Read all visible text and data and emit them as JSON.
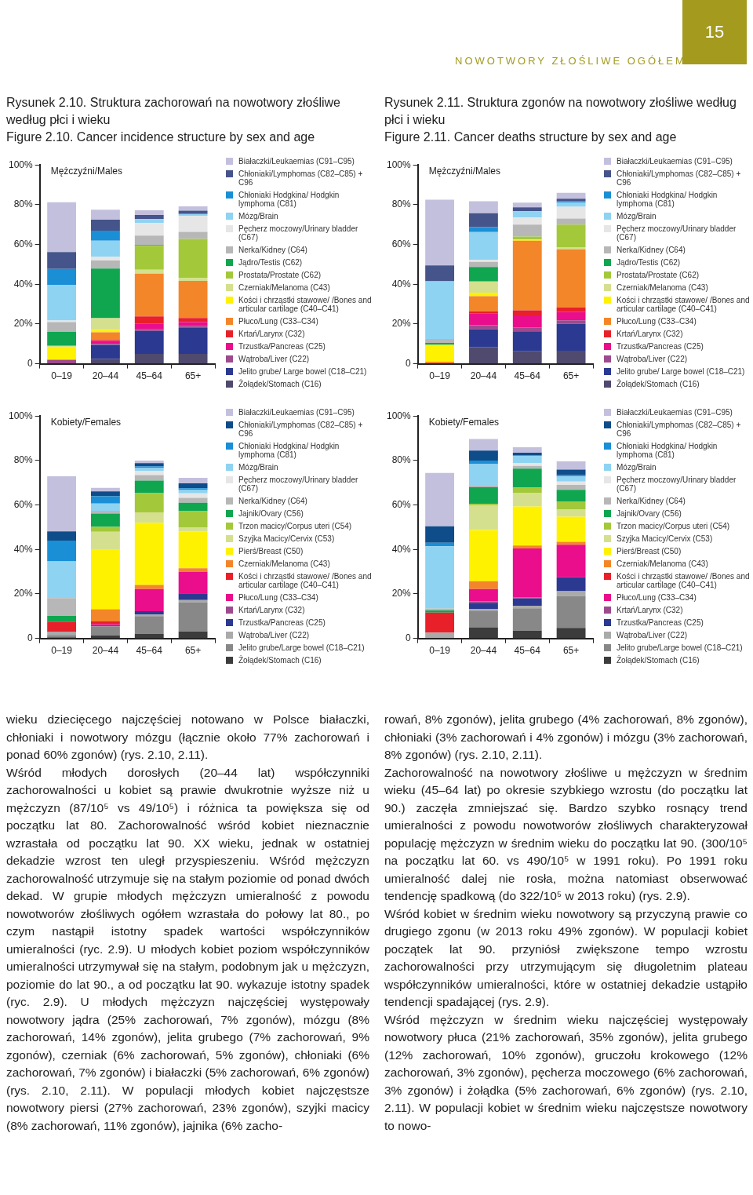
{
  "chart_data": [
    {
      "type": "bar",
      "title": "Rysunek 2.10. Struktura zachorowań na nowotwory złośliwe według płci i wieku\nFigure 2.10. Cancer incidence structure by sex and age",
      "subtitle": "Mężczyźni/Males",
      "stacked": true,
      "legend": "right",
      "categories": [
        "0–19",
        "20–44",
        "45–64",
        "65+"
      ],
      "ylim": [
        0,
        100
      ],
      "yticks": [
        {
          "value": 0,
          "label": "0"
        },
        {
          "value": 20,
          "label": "20%"
        },
        {
          "value": 40,
          "label": "40%"
        },
        {
          "value": 60,
          "label": "60%"
        },
        {
          "value": 80,
          "label": "80%"
        },
        {
          "value": 100,
          "label": "100%"
        }
      ],
      "annotations": [
        "15",
        "NOWOTWORY ZŁOŚLIWE OGÓŁEM",
        "wieku dziecięcego najczęściej notowano w Polsce białaczki, chłoniaki i nowotwory mózgu (łącznie około 77% zachorowań i ponad 60% zgonów) (rys. 2.10, 2.11).\nWśród młodych dorosłych (20–44 lat) współczynniki zachorowalności u kobiet są prawie dwukrotnie wyższe niż u mężczyzn (87/10⁵ vs 49/10⁵) i różnica ta powiększa się od początku lat 80. Zachorowalność wśród kobiet nieznacznie wzrastała od początku lat 90. XX wieku, jednak w ostatniej dekadzie wzrost ten uległ przyspieszeniu. Wśród mężczyzn zachorowalność utrzymuje się na stałym poziomie od ponad dwóch dekad. W grupie młodych mężczyzn umieralność z powodu nowotworów złośliwych ogółem wzrastała do połowy lat 80., po czym nastąpił istotny spadek wartości współczynników umieralności (ryc. 2.9). U młodych kobiet poziom współczynników umieralności utrzymywał się na stałym, podobnym jak u mężczyzn, poziomie do lat 90., a od początku lat 90. wykazuje istotny spadek (ryc. 2.9). U młodych mężczyzn najczęściej występowały nowotwory jądra (25% zachorowań, 7% zgonów), mózgu (8% zachorowań, 14% zgonów), jelita grubego (7% zachorowań, 9% zgonów), czerniak (6% zachorowań, 5% zgonów), chłoniaki (6% zachorowań, 7% zgonów) i białaczki (5% zachorowań, 6% zgonów) (rys. 2.10, 2.11). W populacji młodych kobiet najczęstsze nowotwory piersi (27% zachorowań, 23% zgonów), szyjki macicy (8% zachorowań, 11% zgonów), jajnika (6% zacho-"
      ],
      "series": [
        {
          "name": "Żołądek/Stomach (C16)",
          "color": "#4f4a6e",
          "values": [
            0,
            2.5,
            5,
            5
          ]
        },
        {
          "name": "Jelito grube/ Large bowel (C18–C21)",
          "color": "#2b3990",
          "values": [
            0,
            7,
            11.5,
            13
          ]
        },
        {
          "name": "Wątroba/Liver (C22)",
          "color": "#9e4a8e",
          "values": [
            2,
            0.5,
            0.8,
            1
          ]
        },
        {
          "name": "Trzustka/Pancreas (C25)",
          "color": "#ea0d8c",
          "values": [
            0,
            1.5,
            3,
            2
          ]
        },
        {
          "name": "Krtań/Larynx (C32)",
          "color": "#e8202a",
          "values": [
            0,
            0.5,
            3.5,
            2
          ]
        },
        {
          "name": "Płuco/Lung (C33–C34)",
          "color": "#f4862a",
          "values": [
            0,
            3.8,
            21.5,
            18.7
          ]
        },
        {
          "name": "Kości i chrząstki stawowe/ /Bones and articular cartilage (C40–C41)",
          "color": "#fff200",
          "values": [
            6.5,
            1.2,
            0,
            0
          ]
        },
        {
          "name": "Czerniak/Melanoma (C43)",
          "color": "#d5e08e",
          "values": [
            0.5,
            5.9,
            2,
            1.4
          ]
        },
        {
          "name": "Prostata/Prostate (C62)",
          "color": "#a3c93a",
          "values": [
            0,
            0,
            12,
            19.7
          ]
        },
        {
          "name": "Jądro/Testis (C62)",
          "color": "#10a650",
          "values": [
            7,
            25,
            0.4,
            0
          ]
        },
        {
          "name": "Nerka/Kidney (C64)",
          "color": "#b7b7b7",
          "values": [
            5,
            4,
            4.8,
            3.5
          ]
        },
        {
          "name": "Pęcherz moczowy/Urinary bladder (C67)",
          "color": "#e6e6e6",
          "values": [
            0.7,
            2,
            6.3,
            8
          ]
        },
        {
          "name": "Mózg/Brain",
          "color": "#8fd3f2",
          "values": [
            18,
            8,
            2,
            1
          ]
        },
        {
          "name": "Chłoniaki Hodgkina/ Hodgkin lymphoma (C81)",
          "color": "#1a8fd6",
          "values": [
            8,
            5,
            0,
            0
          ]
        },
        {
          "name": "Chłoniaki/Lymphomas (C82–C85) + C96",
          "color": "#45548a",
          "values": [
            8.5,
            5.6,
            2,
            1.7
          ]
        },
        {
          "name": "Białaczki/Leukaemias (C91–C95)",
          "color": "#c3c0de",
          "values": [
            25,
            5,
            2.4,
            2.2
          ]
        }
      ]
    },
    {
      "type": "bar",
      "title": "Rysunek 2.11. Struktura zgonów na nowotwory złośliwe według płci i wieku\nFigure 2.11. Cancer deaths structure by sex and age",
      "subtitle": "Mężczyźni/Males",
      "stacked": true,
      "legend": "right",
      "categories": [
        "0–19",
        "20–44",
        "45–64",
        "65+"
      ],
      "ylim": [
        0,
        100
      ],
      "yticks": [
        {
          "value": 0,
          "label": "0"
        },
        {
          "value": 20,
          "label": "20%"
        },
        {
          "value": 40,
          "label": "40%"
        },
        {
          "value": 60,
          "label": "60%"
        },
        {
          "value": 80,
          "label": "80%"
        },
        {
          "value": 100,
          "label": "100%"
        }
      ],
      "annotations": [
        "rowań, 8% zgonów), jelita grubego (4% zachorowań, 8% zgonów), chłoniaki (3% zachorowań i 4% zgonów) i mózgu (3% zachorowań, 8% zgonów) (rys. 2.10, 2.11).\nZachorowalność na nowotwory złośliwe u mężczyzn w średnim wieku (45–64 lat) po okresie szybkiego wzrostu (do początku lat 90.) zaczęła zmniejszać się. Bardzo szybko rosnący trend umieralności z powodu nowotworów złośliwych charakteryzował populację mężczyzn w średnim wieku do początku lat 90. (300/10⁵ na początku lat 60. vs 490/10⁵ w 1991 roku). Po 1991 roku umieralność dalej nie rosła, można natomiast obserwować tendencję spadkową (do 322/10⁵ w 2013 roku) (rys. 2.9).\nWśród kobiet w średnim wieku nowotwory są przyczyną prawie co drugiego zgonu (w 2013 roku 49% zgonów). W populacji kobiet początek lat 90. przyniósł zwiększone tempo wzrostu zachorowalności przy utrzymującym się długoletnim plateau współczynników umieralności, które w ostatniej dekadzie ustąpiło tendencji spadającej (rys. 2.9).\nWśród mężczyzn w średnim wieku najczęściej występowały nowotwory płuca (21% zachorowań, 35% zgonów), jelita grubego (12% zachorowań, 10% zgonów), gruczołu krokowego (12% zachorowań, 3% zgonów), pęcherza moczowego (6% zachorowań, 3% zgonów) i żołądka (5% zachorowań, 6% zgonów) (rys. 2.10, 2.11). W populacji kobiet w średnim wieku najczęstsze nowotwory to nowo-"
      ],
      "series": [
        {
          "name": "Żołądek/Stomach (C16)",
          "color": "#4f4a6e",
          "values": [
            0,
            8.4,
            6.3,
            6.6
          ]
        },
        {
          "name": "Jelito grube/ Large bowel (C18–C21)",
          "color": "#2b3990",
          "values": [
            0,
            9,
            10,
            13.5
          ]
        },
        {
          "name": "Wątroba/Liver (C22)",
          "color": "#9e4a8e",
          "values": [
            0,
            2,
            2,
            1.7
          ]
        },
        {
          "name": "Trzustka/Pancreas (C25)",
          "color": "#ea0d8c",
          "values": [
            0,
            6,
            5.6,
            4.2
          ]
        },
        {
          "name": "Krtań/Larynx (C32)",
          "color": "#e8202a",
          "values": [
            0,
            1,
            3,
            2.4
          ]
        },
        {
          "name": "Płuco/Lung (C33–C34)",
          "color": "#f4862a",
          "values": [
            1,
            7.6,
            35,
            29.2
          ]
        },
        {
          "name": "Kości i chrząstki stawowe/ /Bones and articular cartilage (C40–C41)",
          "color": "#fff200",
          "values": [
            8.5,
            1.8,
            0.6,
            0
          ]
        },
        {
          "name": "Czerniak/Melanoma (C43)",
          "color": "#d5e08e",
          "values": [
            0,
            5.6,
            0,
            1
          ]
        },
        {
          "name": "Prostata/Prostate (C62)",
          "color": "#a3c93a",
          "values": [
            0,
            0,
            1.5,
            11.4
          ]
        },
        {
          "name": "Jądro/Testis (C62)",
          "color": "#10a650",
          "values": [
            1,
            7.3,
            0,
            0
          ]
        },
        {
          "name": "Nerka/Kidney (C64)",
          "color": "#b7b7b7",
          "values": [
            2,
            2.5,
            6,
            3
          ]
        },
        {
          "name": "Pęcherz moczowy/Urinary bladder (C67)",
          "color": "#e6e6e6",
          "values": [
            0,
            1,
            3.5,
            6
          ]
        },
        {
          "name": "Mózg/Brain",
          "color": "#8fd3f2",
          "values": [
            29,
            14,
            3.2,
            2
          ]
        },
        {
          "name": "Chłoniaki Hodgkina/ Hodgkin lymphoma (C81)",
          "color": "#1a8fd6",
          "values": [
            0,
            2.5,
            0,
            0.8
          ]
        },
        {
          "name": "Chłoniaki/Lymphomas (C82–C85) + C96",
          "color": "#45548a",
          "values": [
            8,
            7,
            2,
            1.2
          ]
        },
        {
          "name": "Białaczki/Leukaemias (C91–C95)",
          "color": "#c3c0de",
          "values": [
            33,
            6,
            2.3,
            3
          ]
        }
      ]
    },
    {
      "type": "bar",
      "subtitle": "Kobiety/Females",
      "stacked": true,
      "legend": "right",
      "categories": [
        "0–19",
        "20–44",
        "45–64",
        "65+"
      ],
      "ylim": [
        0,
        100
      ],
      "yticks": [
        {
          "value": 0,
          "label": "0"
        },
        {
          "value": 20,
          "label": "20%"
        },
        {
          "value": 40,
          "label": "40%"
        },
        {
          "value": 60,
          "label": "60%"
        },
        {
          "value": 80,
          "label": "80%"
        },
        {
          "value": 100,
          "label": "100%"
        }
      ],
      "series": [
        {
          "name": "Żołądek/Stomach (C16)",
          "color": "#3c3c3c",
          "values": [
            0.5,
            1.4,
            2,
            3.1
          ]
        },
        {
          "name": "Jelito grube/Large bowel (C18–C21)",
          "color": "#888888",
          "values": [
            1,
            4,
            8,
            13.2
          ]
        },
        {
          "name": "Wątroba/Liver (C22)",
          "color": "#aaaaaa",
          "values": [
            1.5,
            null,
            0.7,
            0.9
          ]
        },
        {
          "name": "Trzustka/Pancreas (C25)",
          "color": "#2b3990",
          "values": [
            0,
            0,
            1.5,
            3
          ]
        },
        {
          "name": "Krtań/Larynx (C32)",
          "color": "#9e4a8e",
          "values": [
            0,
            0,
            0,
            0
          ]
        },
        {
          "name": "Płuco/Lung (C33–C34)",
          "color": "#ea0d8c",
          "values": [
            0,
            1,
            10,
            9.7
          ]
        },
        {
          "name": "Kości i chrząstki stawowe/ /Bones and articular cartilage (C40–C41)",
          "color": "#e8202a",
          "values": [
            4.5,
            1.2,
            0,
            0
          ]
        },
        {
          "name": "Czerniak/Melanoma (C43)",
          "color": "#f4862a",
          "values": [
            0,
            5.5,
            1.8,
            1.6
          ]
        },
        {
          "name": "Pierś/Breast (C50)",
          "color": "#fff200",
          "values": [
            0,
            27,
            28,
            16.5
          ]
        },
        {
          "name": "Szyjka Macicy/Cervix (C53)",
          "color": "#d5e08e",
          "values": [
            0,
            7.8,
            4.7,
            2
          ]
        },
        {
          "name": "Trzon macicy/Corpus uteri (C54)",
          "color": "#a3c93a",
          "values": [
            0,
            2.2,
            8.6,
            7.2
          ]
        },
        {
          "name": "Jajnik/Ovary (C56)",
          "color": "#10a650",
          "values": [
            2.6,
            6,
            5.7,
            3.8
          ]
        },
        {
          "name": "Nerka/Kidney (C64)",
          "color": "#b7b7b7",
          "values": [
            8,
            1.3,
            2.4,
            2.2
          ]
        },
        {
          "name": "Pęcherz moczowy/Urinary bladder (C67)",
          "color": "#e6e6e6",
          "values": [
            0,
            0,
            2,
            2
          ]
        },
        {
          "name": "Mózg/Brain",
          "color": "#8fd3f2",
          "values": [
            16.5,
            3.2,
            1.2,
            1.5
          ]
        },
        {
          "name": "Chłoniaki Hodgkina/ Hodgkin lymphoma (C81)",
          "color": "#1a8fd6",
          "values": [
            9.4,
            3.3,
            0.7,
            0.8
          ]
        },
        {
          "name": "Chłoniaki/Lymphomas (C82–C85) + C96",
          "color": "#0f4c8a",
          "values": [
            4.1,
            2.2,
            1.5,
            2.2
          ]
        },
        {
          "name": "Białaczki/Leukaemias (C91–C95)",
          "color": "#c3c0de",
          "values": [
            24.8,
            1.6,
            1.2,
            2.5
          ]
        }
      ]
    },
    {
      "type": "bar",
      "subtitle": "Kobiety/Females",
      "stacked": true,
      "legend": "right",
      "categories": [
        "0–19",
        "20–44",
        "45–64",
        "65+"
      ],
      "ylim": [
        0,
        100
      ],
      "yticks": [
        {
          "value": 0,
          "label": "0"
        },
        {
          "value": 20,
          "label": "20%"
        },
        {
          "value": 40,
          "label": "40%"
        },
        {
          "value": 60,
          "label": "60%"
        },
        {
          "value": 80,
          "label": "80%"
        },
        {
          "value": 100,
          "label": "100%"
        }
      ],
      "series": [
        {
          "name": "Żołądek/Stomach (C16)",
          "color": "#3c3c3c",
          "values": [
            0,
            5,
            3.5,
            4.7
          ]
        },
        {
          "name": "Jelito grube/Large bowel (C18–C21)",
          "color": "#888888",
          "values": [
            0,
            7.5,
            10,
            14.4
          ]
        },
        {
          "name": "Wątroba/Liver (C22)",
          "color": "#aaaaaa",
          "values": [
            2.6,
            0.8,
            1.2,
            2.1
          ]
        },
        {
          "name": "Trzustka/Pancreas (C25)",
          "color": "#2b3990",
          "values": [
            0,
            2.7,
            3.2,
            6.3
          ]
        },
        {
          "name": "Krtań/Larynx (C32)",
          "color": "#9e4a8e",
          "values": [
            0,
            0.6,
            0.5,
            0
          ]
        },
        {
          "name": "Płuco/Lung (C33–C34)",
          "color": "#ea0d8c",
          "values": [
            0,
            5.6,
            22,
            14.6
          ]
        },
        {
          "name": "Kości i chrząstki stawowe/ /Bones and articular cartilage (C40–C41)",
          "color": "#e8202a",
          "values": [
            9,
            0,
            0,
            0
          ]
        },
        {
          "name": "Czerniak/Melanoma (C43)",
          "color": "#f4862a",
          "values": [
            0,
            3.5,
            1.4,
            1.3
          ]
        },
        {
          "name": "Pierś/Breast (C50)",
          "color": "#fff200",
          "values": [
            0,
            23,
            17.5,
            11.3
          ]
        },
        {
          "name": "Szyjka Macicy/Cervix (C53)",
          "color": "#d5e08e",
          "values": [
            0,
            11,
            6.2,
            3.4
          ]
        },
        {
          "name": "Trzon macicy/Corpus uteri (C54)",
          "color": "#a3c93a",
          "values": [
            0,
            0.8,
            2.3,
            3.5
          ]
        },
        {
          "name": "Jajnik/Ovary (C56)",
          "color": "#10a650",
          "values": [
            1,
            7.5,
            8.5,
            5.2
          ]
        },
        {
          "name": "Nerka/Kidney (C64)",
          "color": "#b7b7b7",
          "values": [
            0.8,
            0.9,
            1.3,
            2.2
          ]
        },
        {
          "name": "Pęcherz moczowy/Urinary bladder (C67)",
          "color": "#e6e6e6",
          "values": [
            0,
            0,
            1.3,
            1.5
          ]
        },
        {
          "name": "Mózg/Brain",
          "color": "#8fd3f2",
          "values": [
            28,
            9.5,
            3.3,
            2.3
          ]
        },
        {
          "name": "Chłoniaki Hodgkina/ Hodgkin lymphoma (C81)",
          "color": "#1a8fd6",
          "values": [
            1.6,
            1.6,
            0,
            0.6
          ]
        },
        {
          "name": "Chłoniaki/Lymphomas (C82–C85) + C96",
          "color": "#0f4c8a",
          "values": [
            7.4,
            4.5,
            1.3,
            2.5
          ]
        },
        {
          "name": "Białaczki/Leukaemias (C91–C95)",
          "color": "#c3c0de",
          "values": [
            24,
            5.2,
            2.5,
            3.7
          ]
        }
      ]
    }
  ]
}
